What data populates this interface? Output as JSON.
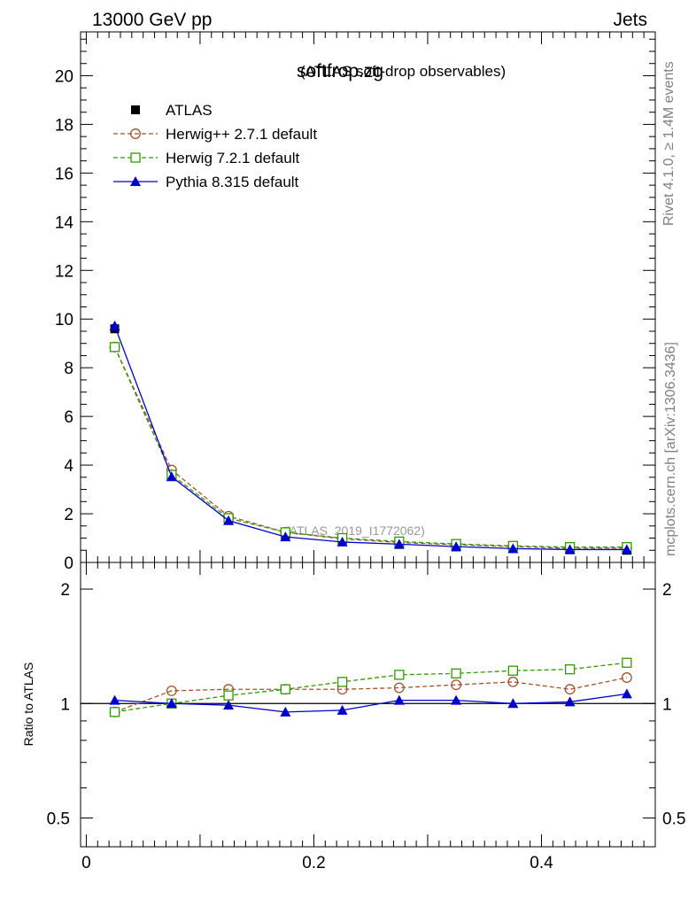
{
  "header": {
    "left": "13000 GeV pp",
    "right": "Jets"
  },
  "side_labels": {
    "rivet": "Rivet 4.1.0, ≥ 1.4M events",
    "mcplots": "mcplots.cern.ch [arXiv:1306.3436]"
  },
  "colors": {
    "atlas": "#000000",
    "herwigpp": "#a0522d",
    "herwig7": "#339900",
    "pythia": "#0000cc"
  },
  "chart_data": [
    {
      "type": "line",
      "title": "softfrop.zg",
      "subtitle": "(ATLAS soft-drop observables)",
      "watermark": "(ATLAS_2019_I1772062)",
      "xlabel": "",
      "ylabel": "",
      "xlim": [
        -0.005,
        0.5
      ],
      "ylim": [
        0,
        21.8
      ],
      "yticks": [
        0,
        2,
        4,
        6,
        8,
        10,
        12,
        14,
        16,
        18,
        20
      ],
      "ytick_labels": [
        "0",
        "2",
        "4",
        "6",
        "8",
        "10",
        "12",
        "14",
        "16",
        "18",
        "20"
      ],
      "legend_position": "top-left",
      "x": [
        0.025,
        0.075,
        0.125,
        0.175,
        0.225,
        0.275,
        0.325,
        0.375,
        0.425,
        0.475
      ],
      "series": [
        {
          "name": "ATLAS",
          "key": "atlas",
          "marker": "square-filled",
          "line": "none",
          "values": [
            9.6,
            3.55,
            1.75,
            1.12,
            0.88,
            0.74,
            0.64,
            0.57,
            0.52,
            0.5
          ]
        },
        {
          "name": "Herwig++ 2.7.1 default",
          "key": "herwigpp",
          "marker": "circle-open",
          "line": "dashed",
          "values": [
            8.85,
            3.8,
            1.9,
            1.24,
            0.97,
            0.82,
            0.73,
            0.65,
            0.58,
            0.59
          ]
        },
        {
          "name": "Herwig 7.2.1 default",
          "key": "herwig7",
          "marker": "square-open",
          "line": "dashed",
          "values": [
            8.85,
            3.6,
            1.82,
            1.24,
            1.0,
            0.86,
            0.76,
            0.68,
            0.63,
            0.63
          ]
        },
        {
          "name": "Pythia 8.315 default",
          "key": "pythia",
          "marker": "triangle-filled",
          "line": "solid",
          "values": [
            9.72,
            3.52,
            1.72,
            1.05,
            0.84,
            0.75,
            0.65,
            0.57,
            0.53,
            0.53
          ]
        }
      ]
    },
    {
      "type": "line",
      "title": "",
      "xlabel": "",
      "ylabel": "Ratio to ATLAS",
      "yscale": "log",
      "xlim": [
        -0.005,
        0.5
      ],
      "ylim": [
        0.42,
        2.35
      ],
      "xticks": [
        0,
        0.2,
        0.4
      ],
      "xtick_labels": [
        "0",
        "0.2",
        "0.4"
      ],
      "yticks": [
        0.5,
        1,
        2
      ],
      "ytick_labels": [
        "0.5",
        "1",
        "2"
      ],
      "reference_line": 1,
      "x": [
        0.025,
        0.075,
        0.125,
        0.175,
        0.225,
        0.275,
        0.325,
        0.375,
        0.425,
        0.475
      ],
      "series": [
        {
          "name": "Herwig++ 2.7.1 default",
          "key": "herwigpp",
          "marker": "circle-open",
          "line": "dashed",
          "values": [
            0.95,
            1.08,
            1.09,
            1.09,
            1.09,
            1.1,
            1.12,
            1.14,
            1.09,
            1.17
          ]
        },
        {
          "name": "Herwig 7.2.1 default",
          "key": "herwig7",
          "marker": "square-open",
          "line": "dashed",
          "values": [
            0.95,
            1.0,
            1.05,
            1.09,
            1.14,
            1.19,
            1.2,
            1.22,
            1.23,
            1.28
          ]
        },
        {
          "name": "Pythia 8.315 default",
          "key": "pythia",
          "marker": "triangle-filled",
          "line": "solid",
          "values": [
            1.02,
            1.0,
            0.99,
            0.95,
            0.96,
            1.02,
            1.02,
            1.0,
            1.01,
            1.06
          ]
        }
      ]
    }
  ]
}
